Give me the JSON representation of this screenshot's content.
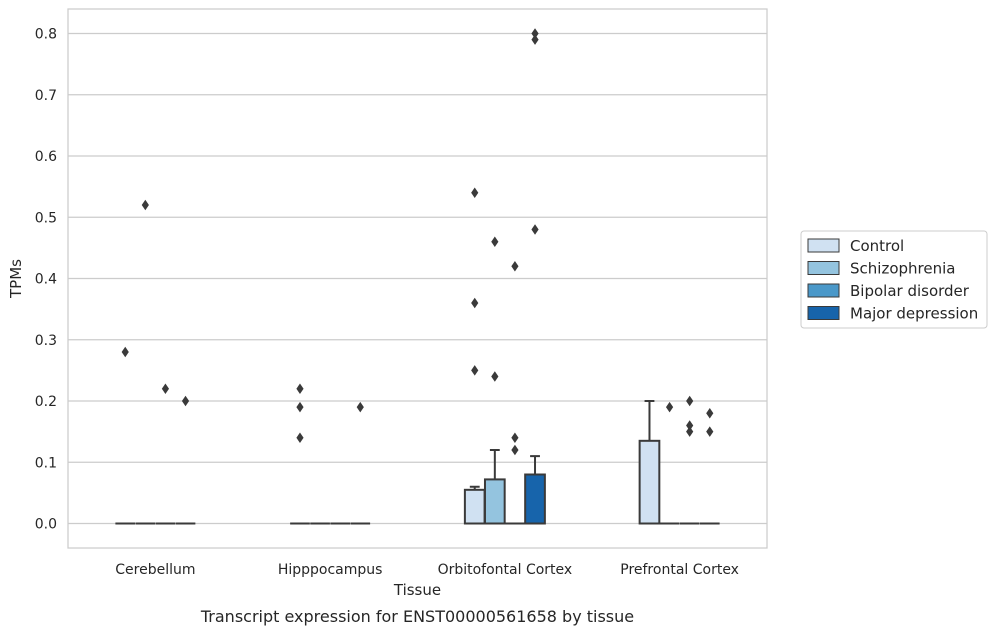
{
  "chart_data": {
    "type": "box",
    "xlabel": "Tissue",
    "ylabel": "TPMs",
    "caption": "Transcript expression for ENST00000561658 by tissue",
    "ylim": [
      -0.04,
      0.84
    ],
    "yticks": [
      0.0,
      0.1,
      0.2,
      0.3,
      0.4,
      0.5,
      0.6,
      0.7,
      0.8
    ],
    "ytick_labels": [
      "0.0",
      "0.1",
      "0.2",
      "0.3",
      "0.4",
      "0.5",
      "0.6",
      "0.7",
      "0.8"
    ],
    "grid": true,
    "legend_placement": "right",
    "categories": [
      "Cerebellum",
      "Hipppocampus",
      "Orbitofontal Cortex",
      "Prefrontal Cortex"
    ],
    "series": [
      {
        "name": "Control",
        "color": "#d0e1f2",
        "boxes": [
          {
            "q1": 0,
            "median": 0,
            "q3": 0,
            "whislo": 0,
            "whishi": 0,
            "fliers": [
              0.28
            ]
          },
          {
            "q1": 0,
            "median": 0,
            "q3": 0,
            "whislo": 0,
            "whishi": 0,
            "fliers": [
              0.14,
              0.19,
              0.22
            ]
          },
          {
            "q1": 0,
            "median": 0,
            "q3": 0.055,
            "whislo": 0,
            "whishi": 0.06,
            "fliers": [
              0.25,
              0.36,
              0.54
            ]
          },
          {
            "q1": 0,
            "median": 0,
            "q3": 0.135,
            "whislo": 0,
            "whishi": 0.2,
            "fliers": []
          }
        ]
      },
      {
        "name": "Schizophrenia",
        "color": "#94c4df",
        "boxes": [
          {
            "q1": 0,
            "median": 0,
            "q3": 0,
            "whislo": 0,
            "whishi": 0,
            "fliers": [
              0.52
            ]
          },
          {
            "q1": 0,
            "median": 0,
            "q3": 0,
            "whislo": 0,
            "whishi": 0,
            "fliers": []
          },
          {
            "q1": 0,
            "median": 0,
            "q3": 0.072,
            "whislo": 0,
            "whishi": 0.12,
            "fliers": [
              0.24,
              0.46
            ]
          },
          {
            "q1": 0,
            "median": 0,
            "q3": 0,
            "whislo": 0,
            "whishi": 0,
            "fliers": [
              0.19
            ]
          }
        ]
      },
      {
        "name": "Bipolar disorder",
        "color": "#4a98c9",
        "boxes": [
          {
            "q1": 0,
            "median": 0,
            "q3": 0,
            "whislo": 0,
            "whishi": 0,
            "fliers": [
              0.22
            ]
          },
          {
            "q1": 0,
            "median": 0,
            "q3": 0,
            "whislo": 0,
            "whishi": 0,
            "fliers": []
          },
          {
            "q1": 0,
            "median": 0,
            "q3": 0,
            "whislo": 0,
            "whishi": 0,
            "fliers": [
              0.12,
              0.14,
              0.42
            ]
          },
          {
            "q1": 0,
            "median": 0,
            "q3": 0,
            "whislo": 0,
            "whishi": 0,
            "fliers": [
              0.15,
              0.16,
              0.2
            ]
          }
        ]
      },
      {
        "name": "Major depression",
        "color": "#1764ab",
        "boxes": [
          {
            "q1": 0,
            "median": 0,
            "q3": 0,
            "whislo": 0,
            "whishi": 0,
            "fliers": [
              0.2
            ]
          },
          {
            "q1": 0,
            "median": 0,
            "q3": 0,
            "whislo": 0,
            "whishi": 0,
            "fliers": [
              0.19
            ]
          },
          {
            "q1": 0,
            "median": 0,
            "q3": 0.08,
            "whislo": 0,
            "whishi": 0.11,
            "fliers": [
              0.48,
              0.79,
              0.8
            ]
          },
          {
            "q1": 0,
            "median": 0,
            "q3": 0,
            "whislo": 0,
            "whishi": 0,
            "fliers": [
              0.15,
              0.18
            ]
          }
        ]
      }
    ]
  }
}
